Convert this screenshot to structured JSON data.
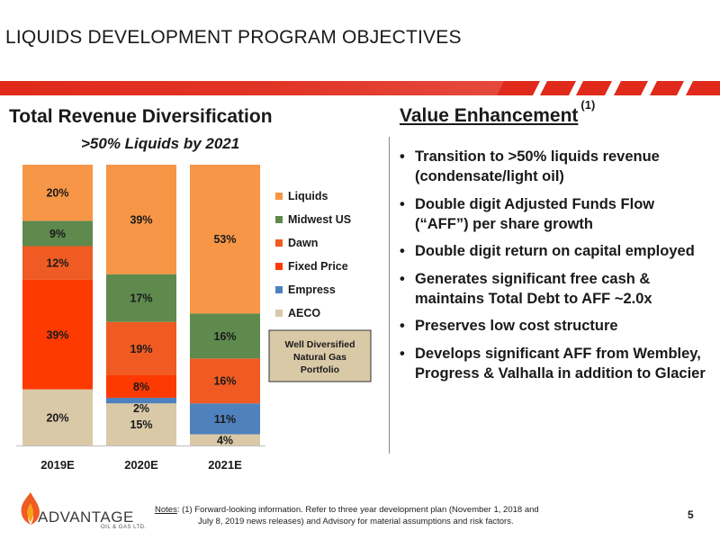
{
  "slide": {
    "title": "LIQUIDS DEVELOPMENT PROGRAM OBJECTIVES",
    "page_number": "5"
  },
  "colors": {
    "banner_red": "#e02a1b",
    "liquids": "#f79646",
    "midwest_us": "#5e8a4e",
    "dawn": "#ef5b22",
    "fixed_price": "#fe3a03",
    "empress": "#4f81bd",
    "aeco": "#d9c9a7"
  },
  "chart_data": {
    "type": "bar",
    "stacked": true,
    "title": "Total Revenue Diversification",
    "subtitle": ">50% Liquids by 2021",
    "categories": [
      "2019E",
      "2020E",
      "2021E"
    ],
    "series": [
      {
        "name": "AECO",
        "values": [
          20,
          15,
          4
        ],
        "labels": [
          "20%",
          "15%",
          "4%"
        ]
      },
      {
        "name": "Empress",
        "values": [
          0,
          2,
          11
        ],
        "labels": [
          "",
          "2%",
          "11%"
        ]
      },
      {
        "name": "Fixed Price",
        "values": [
          39,
          8,
          0
        ],
        "labels": [
          "39%",
          "8%",
          ""
        ]
      },
      {
        "name": "Dawn",
        "values": [
          12,
          19,
          16
        ],
        "labels": [
          "12%",
          "19%",
          "16%"
        ]
      },
      {
        "name": "Midwest US",
        "values": [
          9,
          17,
          16
        ],
        "labels": [
          "9%",
          "17%",
          "16%"
        ]
      },
      {
        "name": "Liquids",
        "values": [
          20,
          39,
          53
        ],
        "labels": [
          "20%",
          "39%",
          "53%"
        ]
      }
    ],
    "ylim": [
      0,
      100
    ],
    "grid": false,
    "legend": {
      "placement": "right",
      "order": [
        "Liquids",
        "Midwest US",
        "Dawn",
        "Fixed Price",
        "Empress",
        "AECO"
      ]
    },
    "annotation": [
      "Well Diversified",
      "Natural Gas",
      "Portfolio"
    ]
  },
  "value_panel": {
    "title": "Value Enhancement",
    "title_note": "(1)",
    "bullet_symbol": "•",
    "bullets": [
      "Transition to >50% liquids revenue (condensate/light oil)",
      "Double digit Adjusted Funds Flow (“AFF”) per share growth",
      "Double digit return on capital employed",
      "Generates significant free cash & maintains Total Debt to AFF ~2.0x",
      "Preserves low cost structure",
      "Develops significant AFF from Wembley, Progress & Valhalla in addition to Glacier"
    ]
  },
  "footer": {
    "logo_text": "ADVANTAGE",
    "logo_subtext": "OIL & GAS LTD.",
    "notes_label": "Notes",
    "notes_line1": ": (1) Forward-looking information. Refer to three year development plan (November 1, 2018 and",
    "notes_line2": "July 8, 2019 news releases) and Advisory for material assumptions and risk factors."
  }
}
